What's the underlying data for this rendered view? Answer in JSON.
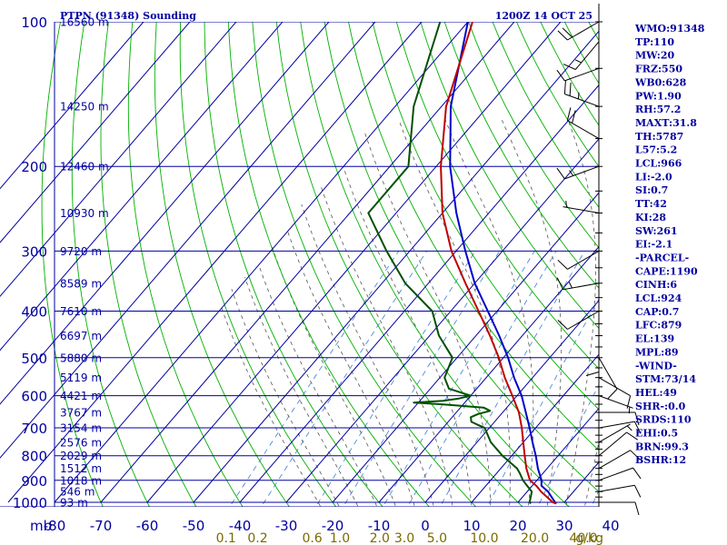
{
  "chart_data": {
    "type": "skew-t",
    "title_left": "PTPN (91348) Sounding",
    "title_right": "1200Z 14 OCT 25",
    "y_unit_label": "mb",
    "pressure_levels": [
      100,
      200,
      300,
      400,
      500,
      600,
      700,
      800,
      900,
      1000
    ],
    "heights": [
      {
        "p": 100,
        "label": "16560 m"
      },
      {
        "p": 150,
        "label": "14250 m"
      },
      {
        "p": 200,
        "label": "12460 m"
      },
      {
        "p": 250,
        "label": "10930 m"
      },
      {
        "p": 300,
        "label": "9720 m"
      },
      {
        "p": 350,
        "label": "8589 m"
      },
      {
        "p": 400,
        "label": "7610 m"
      },
      {
        "p": 450,
        "label": "6697 m"
      },
      {
        "p": 500,
        "label": "5880 m"
      },
      {
        "p": 550,
        "label": "5119 m"
      },
      {
        "p": 600,
        "label": "4421 m"
      },
      {
        "p": 650,
        "label": "3767 m"
      },
      {
        "p": 700,
        "label": "3154 m"
      },
      {
        "p": 750,
        "label": "2576 m"
      },
      {
        "p": 800,
        "label": "2029 m"
      },
      {
        "p": 850,
        "label": "1512 m"
      },
      {
        "p": 900,
        "label": "1018 m"
      },
      {
        "p": 950,
        "label": "546 m"
      },
      {
        "p": 1000,
        "label": "93 m"
      }
    ],
    "temperature_ticks": [
      -80,
      -70,
      -60,
      -50,
      -40,
      -30,
      -20,
      -10,
      0,
      10,
      20,
      30,
      40
    ],
    "temperature_tick_labels": [
      "-80",
      "-70",
      "-60",
      "-50",
      "-40",
      "-30",
      "-20",
      "-10",
      "0",
      "10",
      "20",
      "30",
      "40"
    ],
    "mixing_ratio_labels": [
      "0.1",
      "0.2",
      "0.6",
      "1.0",
      "2.0",
      "3.0",
      "5.0",
      "10.0",
      "20.0",
      "40.0"
    ],
    "mixing_ratio_unit": "g/kg",
    "temperature_profile": [
      [
        1006,
        28.5
      ],
      [
        1000,
        27.5
      ],
      [
        950,
        23
      ],
      [
        925,
        21
      ],
      [
        900,
        18.5
      ],
      [
        850,
        15.5
      ],
      [
        800,
        12.8
      ],
      [
        750,
        10
      ],
      [
        700,
        7
      ],
      [
        650,
        3.5
      ],
      [
        600,
        -1
      ],
      [
        550,
        -6
      ],
      [
        500,
        -11
      ],
      [
        450,
        -17
      ],
      [
        400,
        -24
      ],
      [
        350,
        -32
      ],
      [
        300,
        -41
      ],
      [
        250,
        -50
      ],
      [
        200,
        -59
      ],
      [
        150,
        -69
      ],
      [
        100,
        -79
      ]
    ],
    "dewpoint_profile": [
      [
        1006,
        23
      ],
      [
        1000,
        22.5
      ],
      [
        950,
        21
      ],
      [
        925,
        19
      ],
      [
        900,
        17
      ],
      [
        870,
        15
      ],
      [
        850,
        13.5
      ],
      [
        800,
        8
      ],
      [
        750,
        3
      ],
      [
        700,
        -1
      ],
      [
        690,
        -3
      ],
      [
        680,
        -5
      ],
      [
        665,
        -6
      ],
      [
        655,
        -5
      ],
      [
        645,
        -3
      ],
      [
        635,
        -5
      ],
      [
        625,
        -15
      ],
      [
        620,
        -21
      ],
      [
        615,
        -15
      ],
      [
        608,
        -12
      ],
      [
        600,
        -10
      ],
      [
        580,
        -16
      ],
      [
        550,
        -19
      ],
      [
        500,
        -21
      ],
      [
        450,
        -28
      ],
      [
        400,
        -34
      ],
      [
        350,
        -45
      ],
      [
        300,
        -55
      ],
      [
        250,
        -66
      ],
      [
        240,
        -66
      ],
      [
        200,
        -66
      ],
      [
        150,
        -76
      ],
      [
        100,
        -86
      ]
    ],
    "parcel_profile": [
      [
        1006,
        28.5
      ],
      [
        1000,
        28
      ],
      [
        950,
        24.5
      ],
      [
        924,
        22
      ],
      [
        900,
        21
      ],
      [
        850,
        18
      ],
      [
        800,
        15.2
      ],
      [
        750,
        12
      ],
      [
        700,
        8.7
      ],
      [
        650,
        5
      ],
      [
        600,
        1
      ],
      [
        550,
        -4
      ],
      [
        500,
        -9
      ],
      [
        450,
        -15
      ],
      [
        400,
        -22
      ],
      [
        350,
        -30
      ],
      [
        300,
        -38
      ],
      [
        250,
        -47
      ],
      [
        200,
        -57
      ],
      [
        150,
        -68
      ],
      [
        100,
        -80
      ]
    ],
    "indices": [
      "WMO:91348",
      "TP:110",
      "MW:20",
      "FRZ:550",
      "WB0:628",
      "PW:1.90",
      "RH:57.2",
      "MAXT:31.8",
      "TH:5787",
      "L57:5.2",
      "LCL:966",
      "LI:-2.0",
      "SI:0.7",
      "TT:42",
      "KI:28",
      "SW:261",
      "EI:-2.1",
      "-PARCEL-",
      "CAPE:1190",
      "CINH:6",
      "LCL:924",
      "CAP:0.7",
      "LFC:879",
      "EL:139",
      "MPL:89",
      "-WIND-",
      "STM:73/14",
      "HEL:49",
      "SHR-:0.0",
      "SRDS:110",
      "EHI:0.5",
      "BRN:99.3",
      "BSHR:12"
    ],
    "wind_barbs": [
      {
        "p": 1000,
        "dir": 90,
        "kt": 10
      },
      {
        "p": 950,
        "dir": 80,
        "kt": 10
      },
      {
        "p": 900,
        "dir": 70,
        "kt": 10
      },
      {
        "p": 850,
        "dir": 60,
        "kt": 10
      },
      {
        "p": 800,
        "dir": 50,
        "kt": 10
      },
      {
        "p": 750,
        "dir": 60,
        "kt": 5
      },
      {
        "p": 700,
        "dir": 80,
        "kt": 10
      },
      {
        "p": 650,
        "dir": 90,
        "kt": 10
      },
      {
        "p": 600,
        "dir": 110,
        "kt": 5
      },
      {
        "p": 550,
        "dir": 120,
        "kt": 10
      },
      {
        "p": 500,
        "dir": 150,
        "kt": 10
      },
      {
        "p": 450,
        "dir": 180,
        "kt": 10
      },
      {
        "p": 400,
        "dir": 240,
        "kt": 10
      },
      {
        "p": 350,
        "dir": 260,
        "kt": 15
      },
      {
        "p": 300,
        "dir": 240,
        "kt": 10
      },
      {
        "p": 250,
        "dir": 280,
        "kt": 5
      },
      {
        "p": 200,
        "dir": 250,
        "kt": 15
      },
      {
        "p": 175,
        "dir": 300,
        "kt": 20
      },
      {
        "p": 150,
        "dir": 290,
        "kt": 25
      },
      {
        "p": 125,
        "dir": 250,
        "kt": 10
      },
      {
        "p": 110,
        "dir": 220,
        "kt": 15
      },
      {
        "p": 100,
        "dir": 240,
        "kt": 20
      }
    ]
  },
  "colors": {
    "grid": "#0000a0",
    "dry_adiabat": "#00b000",
    "moist_adiabat": "#555555",
    "mixing_ratio": "#3a7fd0",
    "temperature": "#c00000",
    "dewpoint": "#005000",
    "parcel": "#0000cc",
    "mixing_label": "#7a6a00"
  }
}
